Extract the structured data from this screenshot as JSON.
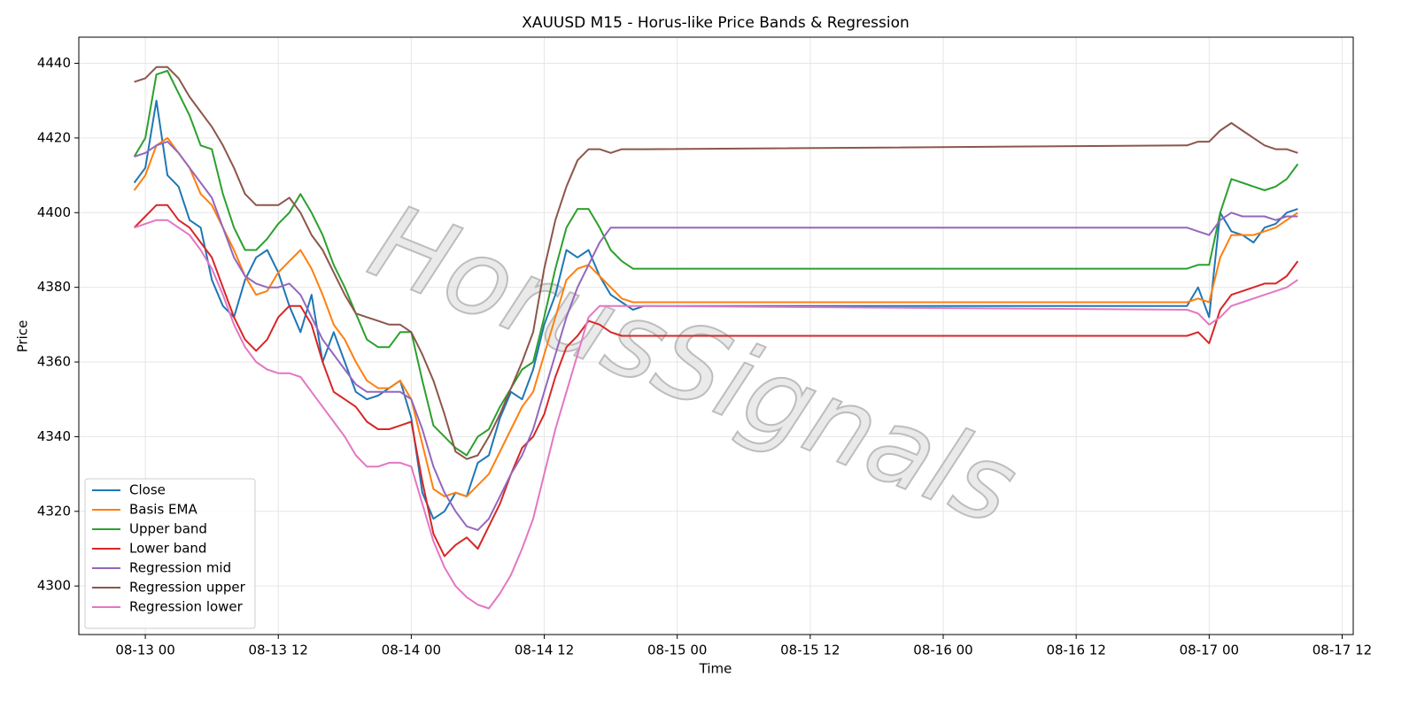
{
  "chart_data": {
    "type": "line",
    "title": "XAUUSD M15 - Horus-like Price Bands & Regression",
    "xlabel": "Time",
    "ylabel": "Price",
    "watermark": "HorusSignals",
    "x": [
      "08-12 23",
      "08-13 00",
      "08-13 01",
      "08-13 02",
      "08-13 03",
      "08-13 04",
      "08-13 05",
      "08-13 06",
      "08-13 07",
      "08-13 08",
      "08-13 09",
      "08-13 10",
      "08-13 11",
      "08-13 12",
      "08-13 13",
      "08-13 14",
      "08-13 15",
      "08-13 16",
      "08-13 17",
      "08-13 18",
      "08-13 19",
      "08-13 20",
      "08-13 21",
      "08-13 22",
      "08-13 23",
      "08-14 00",
      "08-14 01",
      "08-14 02",
      "08-14 03",
      "08-14 04",
      "08-14 05",
      "08-14 06",
      "08-14 07",
      "08-14 08",
      "08-14 09",
      "08-14 10",
      "08-14 11",
      "08-14 12",
      "08-14 13",
      "08-14 14",
      "08-14 15",
      "08-14 16",
      "08-14 17",
      "08-14 18",
      "08-14 19",
      "08-14 20",
      "08-14 21",
      "08-16 22",
      "08-16 23",
      "08-17 00",
      "08-17 01",
      "08-17 02",
      "08-17 03",
      "08-17 04",
      "08-17 05",
      "08-17 06",
      "08-17 07",
      "08-17 08"
    ],
    "series": [
      {
        "name": "Close",
        "color": "#1f77b4",
        "values": [
          4408,
          4412,
          4430,
          4410,
          4407,
          4398,
          4396,
          4382,
          4375,
          4372,
          4382,
          4388,
          4390,
          4384,
          4375,
          4368,
          4378,
          4360,
          4368,
          4360,
          4352,
          4350,
          4351,
          4353,
          4355,
          4345,
          4325,
          4318,
          4320,
          4325,
          4324,
          4333,
          4335,
          4345,
          4352,
          4350,
          4358,
          4370,
          4378,
          4390,
          4388,
          4390,
          4383,
          4378,
          4376,
          4374,
          4375,
          4375,
          4380,
          4372,
          4400,
          4395,
          4394,
          4392,
          4396,
          4397,
          4400,
          4401
        ]
      },
      {
        "name": "Basis EMA",
        "color": "#ff7f0e",
        "values": [
          4406,
          4410,
          4418,
          4420,
          4416,
          4412,
          4405,
          4402,
          4396,
          4390,
          4383,
          4378,
          4379,
          4384,
          4387,
          4390,
          4385,
          4378,
          4370,
          4366,
          4360,
          4355,
          4353,
          4353,
          4355,
          4350,
          4338,
          4326,
          4324,
          4325,
          4324,
          4327,
          4330,
          4336,
          4342,
          4348,
          4352,
          4362,
          4372,
          4382,
          4385,
          4386,
          4383,
          4380,
          4377,
          4376,
          4376,
          4376,
          4377,
          4376,
          4388,
          4394,
          4394,
          4394,
          4395,
          4396,
          4398,
          4400
        ]
      },
      {
        "name": "Upper band",
        "color": "#2ca02c",
        "values": [
          4415,
          4420,
          4437,
          4438,
          4432,
          4426,
          4418,
          4417,
          4405,
          4396,
          4390,
          4390,
          4393,
          4397,
          4400,
          4405,
          4400,
          4394,
          4386,
          4380,
          4373,
          4366,
          4364,
          4364,
          4368,
          4368,
          4355,
          4343,
          4340,
          4337,
          4335,
          4340,
          4342,
          4348,
          4353,
          4358,
          4360,
          4372,
          4385,
          4396,
          4401,
          4401,
          4396,
          4390,
          4387,
          4385,
          4385,
          4385,
          4386,
          4386,
          4400,
          4409,
          4408,
          4407,
          4406,
          4407,
          4409,
          4413
        ]
      },
      {
        "name": "Lower band",
        "color": "#d62728",
        "values": [
          4396,
          4399,
          4402,
          4402,
          4398,
          4396,
          4392,
          4388,
          4380,
          4372,
          4366,
          4363,
          4366,
          4372,
          4375,
          4375,
          4370,
          4360,
          4352,
          4350,
          4348,
          4344,
          4342,
          4342,
          4343,
          4344,
          4328,
          4314,
          4308,
          4311,
          4313,
          4310,
          4316,
          4322,
          4330,
          4337,
          4340,
          4346,
          4356,
          4364,
          4367,
          4371,
          4370,
          4368,
          4367,
          4367,
          4367,
          4367,
          4368,
          4365,
          4374,
          4378,
          4379,
          4380,
          4381,
          4381,
          4383,
          4387
        ]
      },
      {
        "name": "Regression mid",
        "color": "#9467bd",
        "values": [
          4415,
          4416,
          4418,
          4419,
          4416,
          4412,
          4408,
          4404,
          4396,
          4388,
          4383,
          4381,
          4380,
          4380,
          4381,
          4378,
          4372,
          4366,
          4362,
          4358,
          4354,
          4352,
          4352,
          4352,
          4352,
          4350,
          4342,
          4332,
          4325,
          4320,
          4316,
          4315,
          4318,
          4324,
          4330,
          4335,
          4342,
          4352,
          4362,
          4372,
          4380,
          4386,
          4392,
          4396,
          4396,
          4396,
          4396,
          4396,
          4395,
          4394,
          4398,
          4400,
          4399,
          4399,
          4399,
          4398,
          4399,
          4399
        ]
      },
      {
        "name": "Regression upper",
        "color": "#8c564b",
        "values": [
          4435,
          4436,
          4439,
          4439,
          4436,
          4431,
          4427,
          4423,
          4418,
          4412,
          4405,
          4402,
          4402,
          4402,
          4404,
          4400,
          4394,
          4390,
          4384,
          4378,
          4373,
          4372,
          4371,
          4370,
          4370,
          4368,
          4362,
          4355,
          4346,
          4336,
          4334,
          4335,
          4340,
          4346,
          4353,
          4360,
          4368,
          4385,
          4398,
          4407,
          4414,
          4417,
          4417,
          4416,
          4417,
          4417,
          4417,
          4418,
          4419,
          4419,
          4422,
          4424,
          4422,
          4420,
          4418,
          4417,
          4417,
          4416
        ]
      },
      {
        "name": "Regression lower",
        "color": "#e377c2",
        "values": [
          4396,
          4397,
          4398,
          4398,
          4396,
          4394,
          4390,
          4385,
          4378,
          4370,
          4364,
          4360,
          4358,
          4357,
          4357,
          4356,
          4352,
          4348,
          4344,
          4340,
          4335,
          4332,
          4332,
          4333,
          4333,
          4332,
          4322,
          4312,
          4305,
          4300,
          4297,
          4295,
          4294,
          4298,
          4303,
          4310,
          4318,
          4330,
          4342,
          4352,
          4362,
          4372,
          4375,
          4375,
          4375,
          4375,
          4375,
          4374,
          4373,
          4370,
          4372,
          4375,
          4376,
          4377,
          4378,
          4379,
          4380,
          4382
        ]
      }
    ],
    "xlim": [
      "08-12 18",
      "08-17 13"
    ],
    "xticks": [
      "08-13 00",
      "08-13 12",
      "08-14 00",
      "08-14 12",
      "08-15 00",
      "08-15 12",
      "08-16 00",
      "08-16 12",
      "08-17 00",
      "08-17 12"
    ],
    "ylim": [
      4287,
      4447
    ],
    "yticks": [
      4300,
      4320,
      4340,
      4360,
      4380,
      4400,
      4420,
      4440
    ],
    "grid": true,
    "legend": "lower left"
  }
}
